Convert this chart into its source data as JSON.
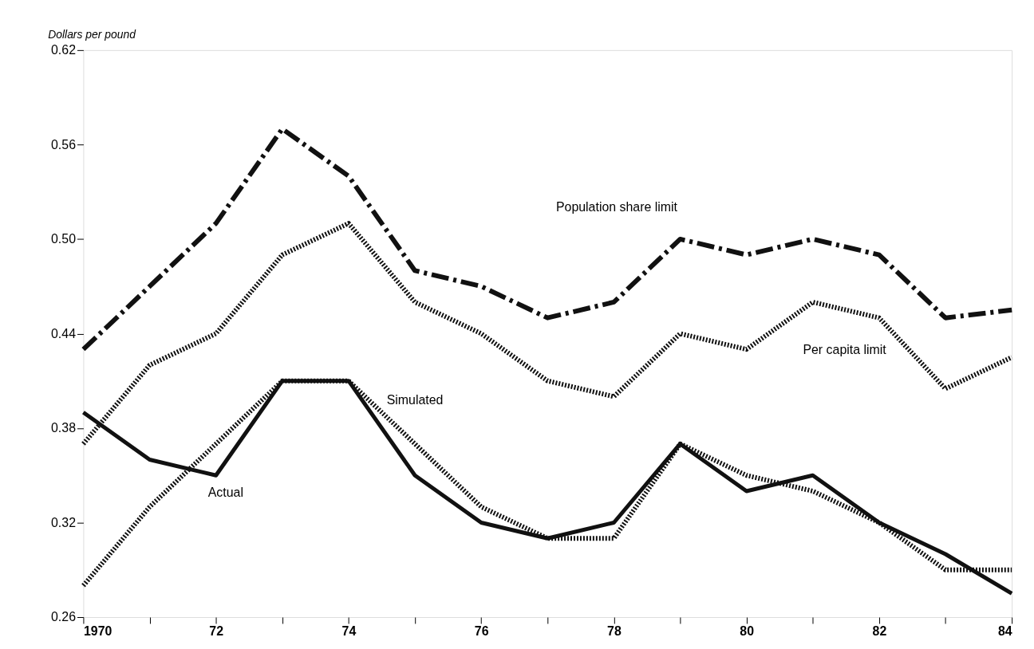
{
  "chart_data": {
    "type": "line",
    "ylabel": "Dollars per pound",
    "x": [
      1970,
      1971,
      1972,
      1973,
      1974,
      1975,
      1976,
      1977,
      1978,
      1979,
      1980,
      1981,
      1982,
      1983,
      1984
    ],
    "xlim": [
      1970,
      1984
    ],
    "xticks": [
      {
        "value": 1970,
        "label": "1970"
      },
      {
        "value": 1971,
        "label": null
      },
      {
        "value": 1972,
        "label": "72"
      },
      {
        "value": 1973,
        "label": null
      },
      {
        "value": 1974,
        "label": "74"
      },
      {
        "value": 1975,
        "label": null
      },
      {
        "value": 1976,
        "label": "76"
      },
      {
        "value": 1977,
        "label": null
      },
      {
        "value": 1978,
        "label": "78"
      },
      {
        "value": 1979,
        "label": null
      },
      {
        "value": 1980,
        "label": "80"
      },
      {
        "value": 1981,
        "label": null
      },
      {
        "value": 1982,
        "label": "82"
      },
      {
        "value": 1983,
        "label": null
      },
      {
        "value": 1984,
        "label": "84"
      }
    ],
    "ylim": [
      0.26,
      0.62
    ],
    "yticks": [
      {
        "value": 0.26,
        "label": "0.26"
      },
      {
        "value": 0.32,
        "label": "0.32"
      },
      {
        "value": 0.38,
        "label": "0.38"
      },
      {
        "value": 0.44,
        "label": "0.44"
      },
      {
        "value": 0.5,
        "label": "0.50"
      },
      {
        "value": 0.56,
        "label": "0.56"
      },
      {
        "value": 0.62,
        "label": "0.62"
      }
    ],
    "grid": false,
    "legend": false,
    "marker": "none",
    "series": [
      {
        "name": "Population share limit",
        "color": "#111111",
        "line_style": "dashed",
        "values": [
          0.43,
          0.47,
          0.51,
          0.57,
          0.54,
          0.48,
          0.47,
          0.45,
          0.46,
          0.5,
          0.49,
          0.5,
          0.49,
          0.45,
          0.455
        ]
      },
      {
        "name": "Per capita limit",
        "color": "#111111",
        "line_style": "dotted",
        "values": [
          0.37,
          0.42,
          0.44,
          0.49,
          0.51,
          0.46,
          0.44,
          0.41,
          0.4,
          0.44,
          0.43,
          0.46,
          0.45,
          0.405,
          0.425
        ]
      },
      {
        "name": "Simulated",
        "color": "#111111",
        "line_style": "dotted",
        "values": [
          0.28,
          0.33,
          0.37,
          0.41,
          0.41,
          0.37,
          0.33,
          0.31,
          0.31,
          0.37,
          0.35,
          0.34,
          0.32,
          0.29,
          0.29
        ]
      },
      {
        "name": "Actual",
        "color": "#111111",
        "line_style": "solid",
        "values": [
          0.39,
          0.36,
          0.35,
          0.41,
          0.41,
          0.35,
          0.32,
          0.31,
          0.32,
          0.37,
          0.34,
          0.35,
          0.32,
          0.3,
          0.275
        ]
      }
    ]
  }
}
